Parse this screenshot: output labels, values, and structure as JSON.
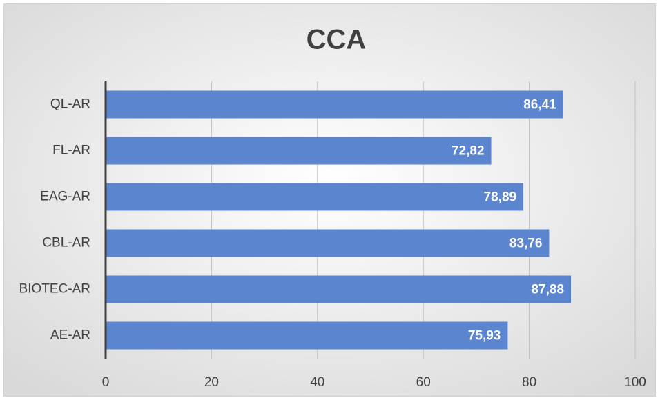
{
  "chart_data": {
    "type": "hbar",
    "title": "CCA",
    "categories": [
      "QL-AR",
      "FL-AR",
      "EAG-AR",
      "CBL-AR",
      "BIOTEC-AR",
      "AE-AR"
    ],
    "values": [
      86.41,
      72.82,
      78.89,
      83.76,
      87.88,
      75.93
    ],
    "value_labels": [
      "86,41",
      "72,82",
      "78,89",
      "83,76",
      "87,88",
      "75,93"
    ],
    "color": "#5b85cf",
    "xlim": [
      0,
      100
    ],
    "xticks": [
      0,
      20,
      40,
      60,
      80,
      100
    ],
    "grid": true
  }
}
